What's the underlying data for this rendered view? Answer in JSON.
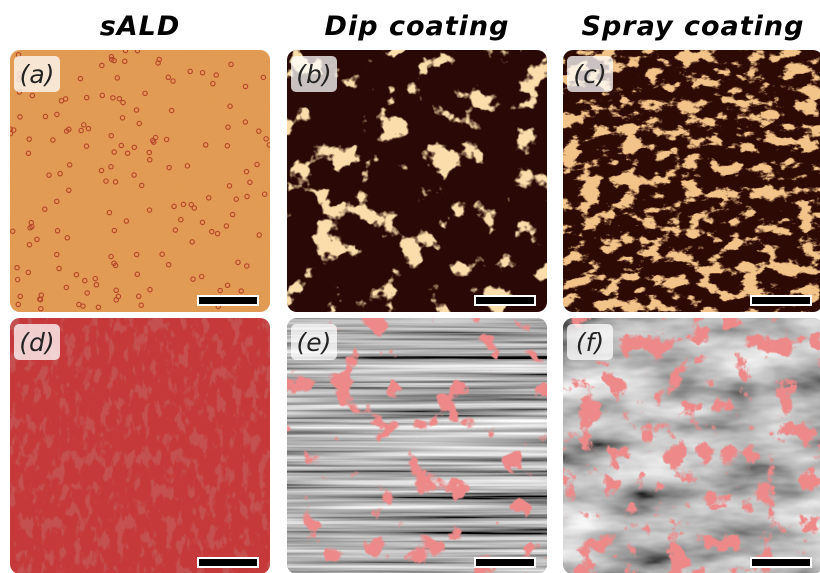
{
  "columns": [
    {
      "title": "sALD"
    },
    {
      "title": "Dip coating"
    },
    {
      "title": "Spray coating"
    }
  ],
  "panels": [
    {
      "label": "(a)"
    },
    {
      "label": "(b)"
    },
    {
      "label": "(c)"
    },
    {
      "label": "(d)"
    },
    {
      "label": "(e)"
    },
    {
      "label": "(f)"
    }
  ]
}
